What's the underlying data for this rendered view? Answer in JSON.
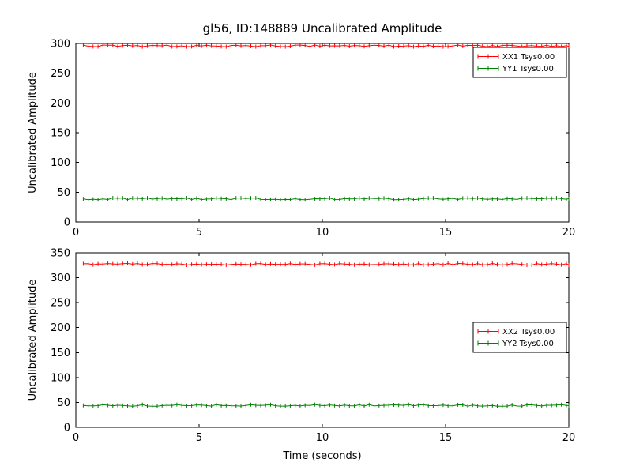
{
  "chart_data": [
    {
      "type": "line",
      "title": "gl56, ID:148889 Uncalibrated Amplitude",
      "xlabel": "",
      "ylabel": "Uncalibrated Amplitude",
      "xlim": [
        0,
        20
      ],
      "ylim": [
        0,
        300
      ],
      "xticks": [
        0,
        5,
        10,
        15,
        20
      ],
      "yticks": [
        0,
        50,
        100,
        150,
        200,
        250,
        300
      ],
      "x_start": 0.3,
      "x_end": 20,
      "x_step": 0.2,
      "grid": false,
      "legend_position": "upper right",
      "series": [
        {
          "name": "XX1 Tsys0.00",
          "color": "#ff0000",
          "value": 296
        },
        {
          "name": "YY1 Tsys0.00",
          "color": "#008000",
          "value": 39
        }
      ]
    },
    {
      "type": "line",
      "title": "",
      "xlabel": "Time (seconds)",
      "ylabel": "Uncalibrated Amplitude",
      "xlim": [
        0,
        20
      ],
      "ylim": [
        0,
        350
      ],
      "xticks": [
        0,
        5,
        10,
        15,
        20
      ],
      "yticks": [
        0,
        50,
        100,
        150,
        200,
        250,
        300,
        350
      ],
      "x_start": 0.3,
      "x_end": 20,
      "x_step": 0.2,
      "grid": false,
      "legend_position": "center right",
      "series": [
        {
          "name": "XX2 Tsys0.00",
          "color": "#ff0000",
          "value": 327
        },
        {
          "name": "YY2 Tsys0.00",
          "color": "#008000",
          "value": 44
        }
      ]
    }
  ]
}
